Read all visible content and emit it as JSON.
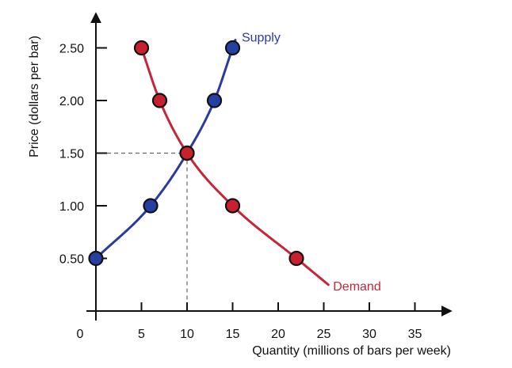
{
  "chart_data": {
    "type": "line",
    "title": "",
    "xlabel": "Quantity (millions of bars per week)",
    "ylabel": "Price (dollars per bar)",
    "xlim": [
      0,
      38
    ],
    "ylim": [
      0,
      2.85
    ],
    "x_ticks": [
      {
        "value": 0,
        "label": "0"
      },
      {
        "value": 5,
        "label": "5"
      },
      {
        "value": 10,
        "label": "10"
      },
      {
        "value": 15,
        "label": "15"
      },
      {
        "value": 20,
        "label": "20"
      },
      {
        "value": 25,
        "label": "25"
      },
      {
        "value": 30,
        "label": "30"
      },
      {
        "value": 35,
        "label": "35"
      }
    ],
    "y_ticks": [
      {
        "value": 0.5,
        "label": "0.50"
      },
      {
        "value": 1.0,
        "label": "1.00"
      },
      {
        "value": 1.5,
        "label": "1.50"
      },
      {
        "value": 2.0,
        "label": "2.00"
      },
      {
        "value": 2.5,
        "label": "2.50"
      }
    ],
    "grid": false,
    "legend": "inline labels at curve ends",
    "guide_lines": {
      "x": 10,
      "y": 1.5
    },
    "series": [
      {
        "name": "Supply",
        "color": "#2b3b9c",
        "marker_color": "#2540a3",
        "points": [
          {
            "x": 0,
            "y": 0.5
          },
          {
            "x": 6,
            "y": 1.0
          },
          {
            "x": 10,
            "y": 1.5
          },
          {
            "x": 13,
            "y": 2.0
          },
          {
            "x": 15,
            "y": 2.5
          }
        ],
        "curve_extent": [
          0,
          15.3
        ]
      },
      {
        "name": "Demand",
        "color": "#c4263a",
        "marker_color": "#c8202f",
        "points": [
          {
            "x": 5,
            "y": 2.5
          },
          {
            "x": 7,
            "y": 2.0
          },
          {
            "x": 10,
            "y": 1.5
          },
          {
            "x": 15,
            "y": 1.0
          },
          {
            "x": 22,
            "y": 0.5
          }
        ],
        "curve_extent": [
          4.8,
          25.5
        ]
      }
    ]
  }
}
